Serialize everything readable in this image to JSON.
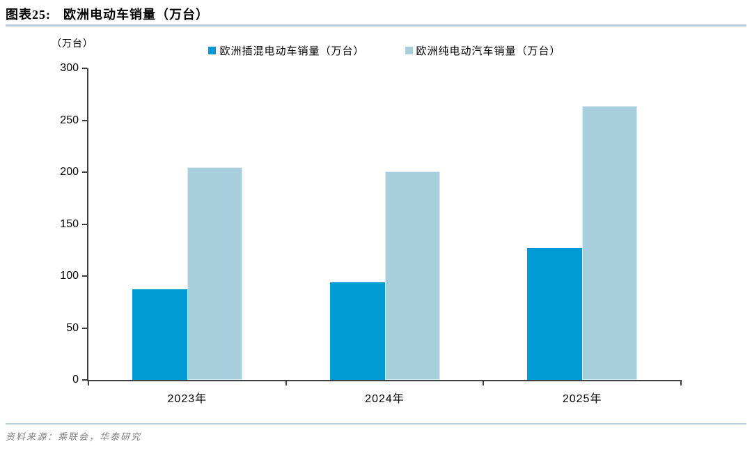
{
  "header": {
    "figure_label": "图表25:",
    "title": "欧洲电动车销量（万台）",
    "rule_color": "#B6CEDD"
  },
  "chart_data": {
    "type": "bar",
    "title": "欧洲电动车销量（万台）",
    "unit_label": "（万台）",
    "categories": [
      "2023年",
      "2024年",
      "2025年"
    ],
    "series": [
      {
        "name": "欧洲插混电动车销量（万台）",
        "color": "#009BD5",
        "values": [
          87,
          94,
          127
        ]
      },
      {
        "name": "欧洲纯电动汽车销量（万台）",
        "color": "#A9CFDF",
        "outline": "#D8EAF2",
        "values": [
          205,
          201,
          264
        ]
      }
    ],
    "ylim": [
      0,
      300
    ],
    "yticks": [
      0,
      50,
      100,
      150,
      200,
      250,
      300
    ],
    "grid": false,
    "legend_position": "top-center",
    "axis_color": "#404040"
  },
  "footer": {
    "source": "资料来源：乘联会，华泰研究"
  }
}
